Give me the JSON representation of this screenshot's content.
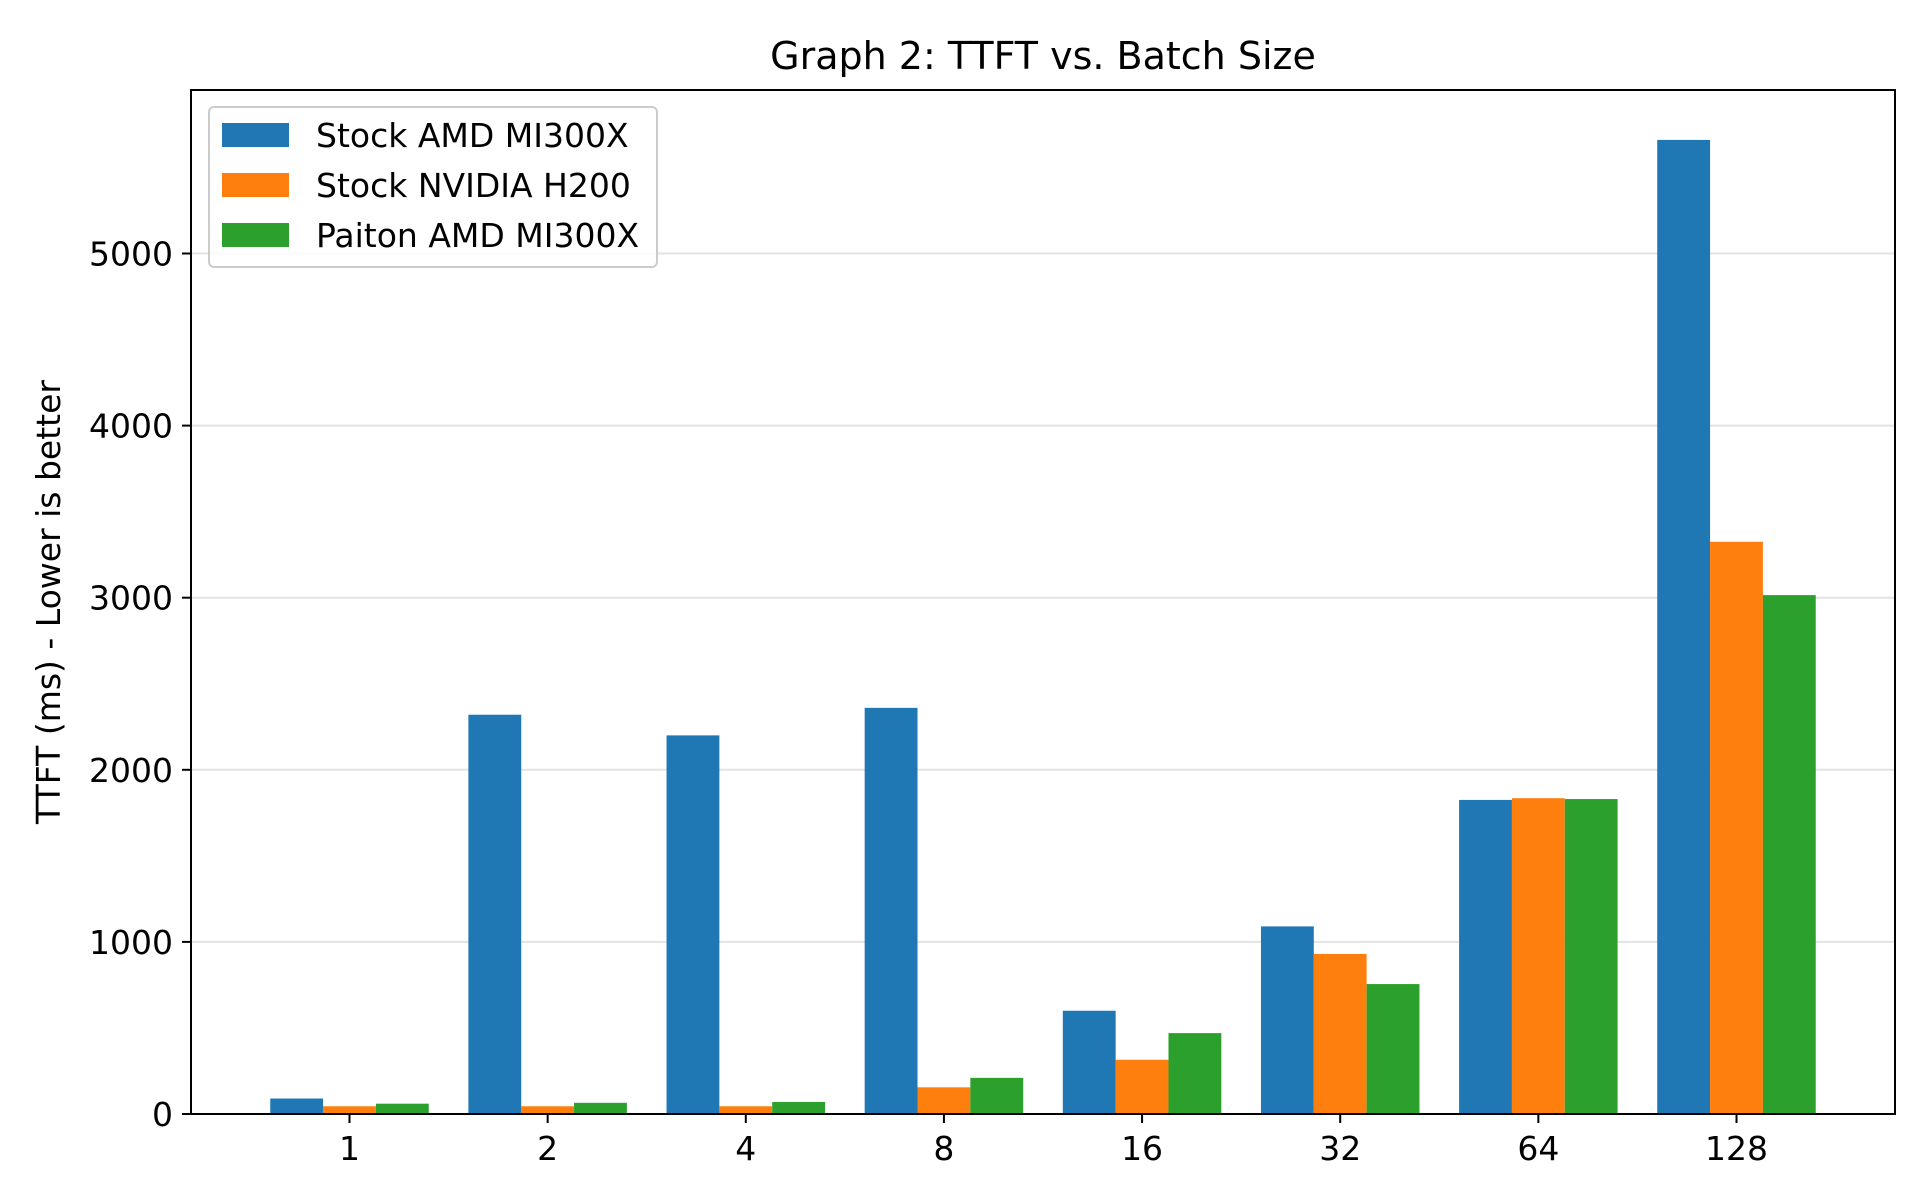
{
  "chart_data": {
    "type": "bar",
    "title": "Graph 2: TTFT vs. Batch Size",
    "xlabel": "",
    "ylabel": "TTFT (ms) - Lower is better",
    "categories": [
      "1",
      "2",
      "4",
      "8",
      "16",
      "32",
      "64",
      "128"
    ],
    "series": [
      {
        "name": "Stock AMD MI300X",
        "color": "#1f77b4",
        "values": [
          90,
          2320,
          2200,
          2360,
          600,
          1090,
          1825,
          5660
        ]
      },
      {
        "name": "Stock NVIDIA H200",
        "color": "#ff7f0e",
        "values": [
          45,
          45,
          45,
          155,
          315,
          930,
          1835,
          3325
        ]
      },
      {
        "name": "Paiton AMD MI300X",
        "color": "#2ca02c",
        "values": [
          60,
          65,
          70,
          210,
          470,
          755,
          1830,
          3015
        ]
      }
    ],
    "yticks": [
      0,
      1000,
      2000,
      3000,
      4000,
      5000
    ],
    "ylim": [
      0,
      5950
    ],
    "grid": "horizontal",
    "legend_position": "top-left"
  }
}
